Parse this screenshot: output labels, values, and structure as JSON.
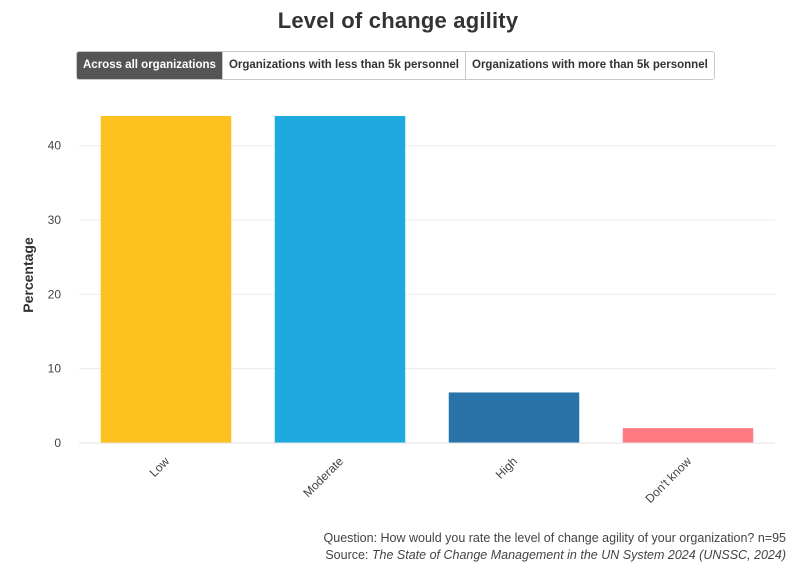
{
  "title": "Level of change agility",
  "tabs": [
    {
      "label": "Across all organizations",
      "active": true
    },
    {
      "label": "Organizations with less than 5k personnel",
      "active": false
    },
    {
      "label": "Organizations with more than 5k personnel",
      "active": false
    }
  ],
  "chart_data": {
    "type": "bar",
    "categories": [
      "Low",
      "Moderate",
      "High",
      "Don't know"
    ],
    "values": [
      44,
      44,
      6.8,
      2
    ],
    "colors": [
      "#fec11f",
      "#1faadf",
      "#2773aa",
      "#ff7b83"
    ],
    "xlabel": "",
    "ylabel": "Percentage",
    "ylim": [
      0,
      44
    ],
    "yticks": [
      0,
      10,
      20,
      30,
      40
    ],
    "grid": true,
    "legend": "none"
  },
  "footer": {
    "question": "Question: How would you rate the level of change agility of your organization? n=95",
    "source_prefix": "Source: ",
    "source_text": "The State of Change Management in the UN System 2024 (UNSSC, 2024)"
  }
}
